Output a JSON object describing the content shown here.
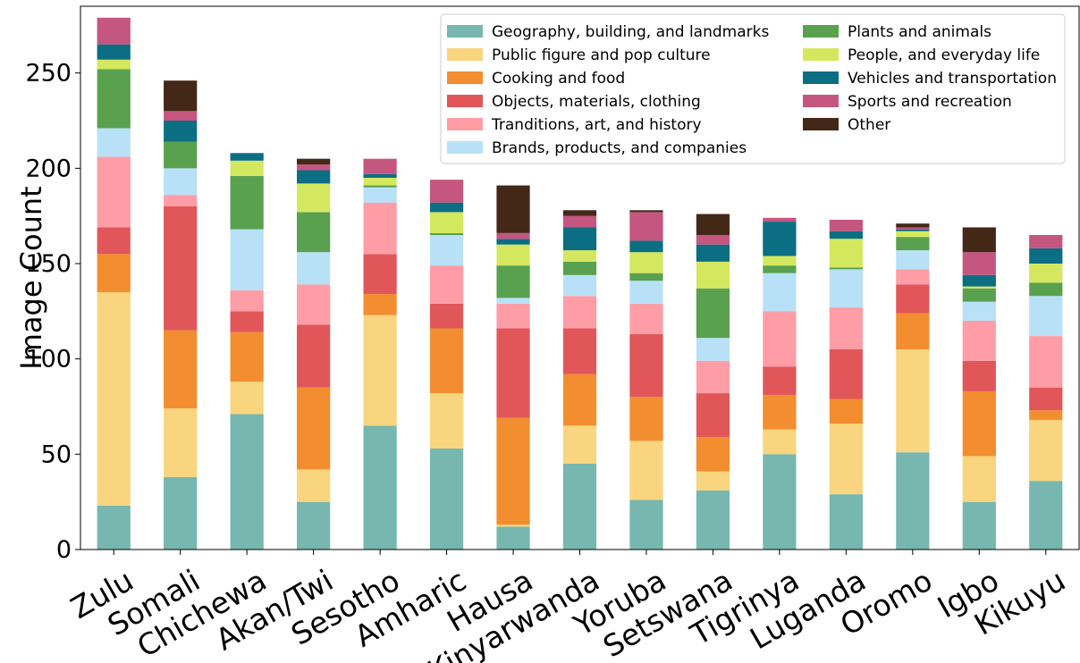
{
  "chart_data": {
    "type": "bar",
    "stacked": true,
    "title": "",
    "xlabel": "",
    "ylabel": "Image Count",
    "ylim": [
      0,
      285
    ],
    "yticks": [
      0,
      50,
      100,
      150,
      200,
      250
    ],
    "grid": false,
    "legend_position": "top-right",
    "legend_columns": 2,
    "categories": [
      "Zulu",
      "Somali",
      "Chichewa",
      "Akan/Twi",
      "Sesotho",
      "Amharic",
      "Hausa",
      "Kinyarwanda",
      "Yoruba",
      "Setswana",
      "Tigrinya",
      "Luganda",
      "Oromo",
      "Igbo",
      "Kikuyu"
    ],
    "series": [
      {
        "name": "Geography, building, and landmarks",
        "color": "#77b7b0",
        "values": [
          23,
          38,
          71,
          25,
          65,
          53,
          12,
          45,
          26,
          31,
          50,
          29,
          51,
          25,
          36
        ]
      },
      {
        "name": "Public figure and pop culture",
        "color": "#f8d57e",
        "values": [
          112,
          36,
          17,
          17,
          58,
          29,
          1,
          20,
          31,
          10,
          13,
          37,
          54,
          24,
          32
        ]
      },
      {
        "name": "Cooking and food",
        "color": "#f28e2f",
        "values": [
          20,
          41,
          26,
          43,
          11,
          34,
          56,
          27,
          23,
          18,
          18,
          13,
          19,
          34,
          5
        ]
      },
      {
        "name": "Objects, materials, clothing",
        "color": "#e15759",
        "values": [
          14,
          65,
          11,
          33,
          21,
          13,
          47,
          24,
          33,
          23,
          15,
          26,
          15,
          16,
          12
        ]
      },
      {
        "name": "Tranditions, art, and history",
        "color": "#ff9da6",
        "values": [
          37,
          6,
          11,
          21,
          27,
          20,
          13,
          17,
          16,
          17,
          29,
          22,
          8,
          21,
          27
        ]
      },
      {
        "name": "Brands, products, and companies",
        "color": "#b8e1f7",
        "values": [
          15,
          14,
          32,
          17,
          8,
          16,
          3,
          11,
          12,
          12,
          20,
          20,
          10,
          10,
          21
        ]
      },
      {
        "name": "Plants and animals",
        "color": "#59a14f",
        "values": [
          31,
          14,
          28,
          21,
          1,
          1,
          17,
          7,
          4,
          26,
          4,
          1,
          7,
          7,
          7
        ]
      },
      {
        "name": "People, and everyday life",
        "color": "#d4e85f",
        "values": [
          5,
          0,
          8,
          15,
          4,
          11,
          11,
          6,
          11,
          14,
          5,
          15,
          3,
          1,
          10
        ]
      },
      {
        "name": "Vehicles and transportation",
        "color": "#0b6e82",
        "values": [
          8,
          11,
          4,
          7,
          2,
          5,
          3,
          12,
          6,
          9,
          18,
          4,
          1,
          6,
          8
        ]
      },
      {
        "name": "Sports and recreation",
        "color": "#c45680",
        "values": [
          14,
          5,
          0,
          3,
          8,
          12,
          3,
          6,
          15,
          5,
          2,
          6,
          1,
          12,
          7
        ]
      },
      {
        "name": "Other",
        "color": "#432818",
        "values": [
          0,
          16,
          0,
          3,
          0,
          0,
          25,
          3,
          1,
          11,
          0,
          0,
          2,
          13,
          0
        ]
      }
    ]
  }
}
